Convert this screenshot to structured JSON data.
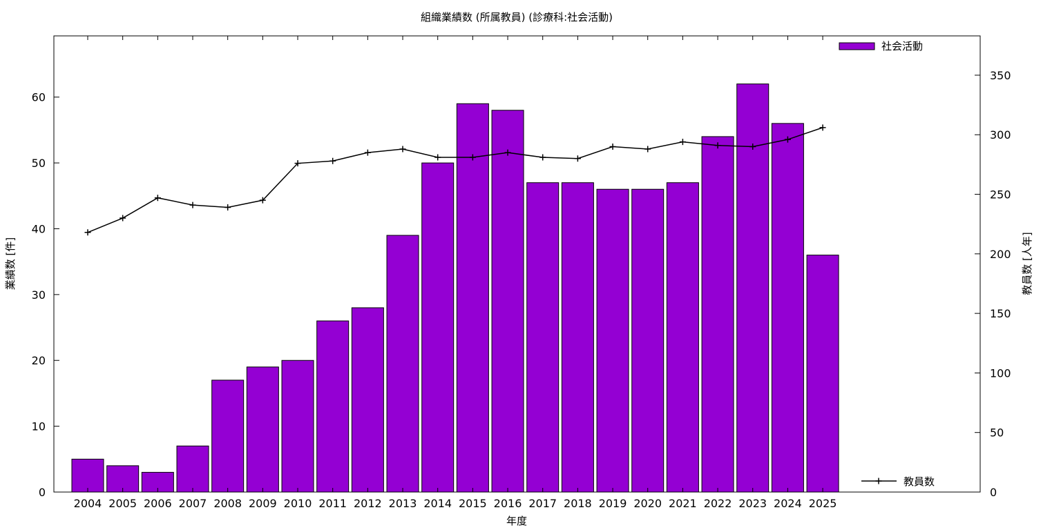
{
  "chart_data": {
    "type": "bar",
    "title": "組織業績数 (所属教員) (診療科:社会活動)",
    "xlabel": "年度",
    "ylabel": "業績数 [件]",
    "y2label": "教員数 [人年]",
    "categories": [
      "2004",
      "2005",
      "2006",
      "2007",
      "2008",
      "2009",
      "2010",
      "2011",
      "2012",
      "2013",
      "2014",
      "2015",
      "2016",
      "2017",
      "2018",
      "2019",
      "2020",
      "2021",
      "2022",
      "2023",
      "2024",
      "2025"
    ],
    "series": [
      {
        "name": "社会活動",
        "type": "bar",
        "axis": "left",
        "color": "#9400d3",
        "values": [
          5,
          4,
          3,
          7,
          17,
          19,
          20,
          26,
          28,
          39,
          50,
          59,
          58,
          47,
          47,
          46,
          46,
          47,
          54,
          62,
          56,
          36
        ]
      },
      {
        "name": "教員数",
        "type": "line",
        "axis": "right",
        "color": "#000000",
        "values": [
          218,
          230,
          247,
          241,
          239,
          245,
          276,
          278,
          285,
          288,
          281,
          281,
          285,
          281,
          280,
          290,
          288,
          294,
          291,
          290,
          296,
          306
        ]
      }
    ],
    "ylim": [
      0,
      69.3
    ],
    "y2lim": [
      0,
      383
    ],
    "yticks": [
      0,
      10,
      20,
      30,
      40,
      50,
      60
    ],
    "y2ticks": [
      0,
      50,
      100,
      150,
      200,
      250,
      300,
      350
    ],
    "grid": false,
    "legend": [
      "top-right",
      "bottom-right"
    ]
  }
}
